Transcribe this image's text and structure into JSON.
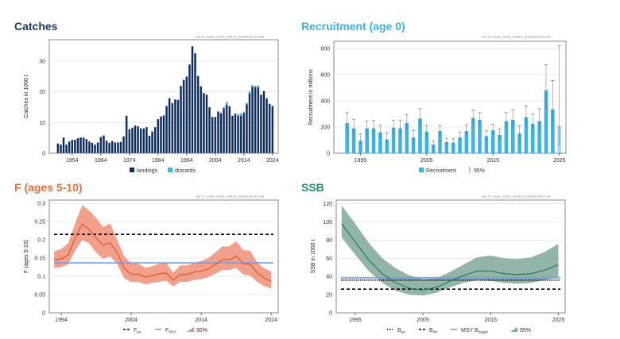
{
  "chart_data": [
    {
      "type": "bar",
      "title": "Catches",
      "title_color": "#1b3a6b",
      "watermark": "anf.27.3a46_2025_20913_2025515162139",
      "xlabel": "",
      "ylabel": "Catches in 1000 t",
      "xlim": [
        1946,
        2026
      ],
      "ylim": [
        0,
        37
      ],
      "yticks": [
        0,
        10,
        20,
        30
      ],
      "xticks": [
        1954,
        1964,
        1974,
        1984,
        1994,
        2004,
        2014,
        2024
      ],
      "grid": true,
      "stacked": true,
      "legend": "bottom",
      "years": [
        1949,
        1950,
        1951,
        1952,
        1953,
        1954,
        1955,
        1956,
        1957,
        1958,
        1959,
        1960,
        1961,
        1962,
        1963,
        1964,
        1965,
        1966,
        1967,
        1968,
        1969,
        1970,
        1971,
        1972,
        1973,
        1974,
        1975,
        1976,
        1977,
        1978,
        1979,
        1980,
        1981,
        1982,
        1983,
        1984,
        1985,
        1986,
        1987,
        1988,
        1989,
        1990,
        1991,
        1992,
        1993,
        1994,
        1995,
        1996,
        1997,
        1998,
        1999,
        2000,
        2001,
        2002,
        2003,
        2004,
        2005,
        2006,
        2007,
        2008,
        2009,
        2010,
        2011,
        2012,
        2013,
        2014,
        2015,
        2016,
        2017,
        2018,
        2019,
        2020,
        2021,
        2022,
        2023,
        2024
      ],
      "series": [
        {
          "name": "landings",
          "color": "#0d2a5c",
          "values": [
            3.2,
            2.8,
            5.1,
            2.8,
            3.8,
            4.4,
            4.4,
            4.9,
            5.1,
            5.1,
            4.6,
            3.8,
            3.4,
            2.8,
            3.5,
            5.3,
            5.8,
            4.1,
            3.4,
            4.0,
            3.5,
            3.5,
            3.7,
            5.5,
            12.2,
            7.8,
            8.3,
            9.0,
            8.8,
            8.1,
            8.1,
            8.5,
            5.7,
            7.1,
            8.5,
            11.1,
            12.0,
            12.3,
            15.4,
            17.9,
            16.3,
            17.5,
            17.4,
            21.9,
            23.9,
            25.0,
            28.9,
            34.9,
            32.6,
            25.2,
            21.8,
            19.6,
            19.1,
            15.0,
            11.8,
            11.8,
            13.6,
            13.1,
            14.7,
            15.8,
            15.3,
            12.2,
            12.9,
            12.2,
            12.2,
            13.1,
            16.0,
            19.5,
            21.6,
            21.6,
            21.5,
            19.0,
            20.3,
            17.8,
            16.1,
            15.3
          ]
        },
        {
          "name": "discards",
          "color": "#3bb3e8",
          "values": [
            0,
            0,
            0,
            0,
            0,
            0,
            0,
            0,
            0,
            0,
            0,
            0,
            0,
            0,
            0,
            0,
            0,
            0,
            0,
            0,
            0,
            0,
            0,
            0,
            0,
            0,
            0,
            0,
            0,
            0,
            0,
            0,
            0,
            0,
            0,
            0,
            0,
            0,
            0,
            0,
            0,
            0,
            0,
            0,
            0,
            0,
            0,
            0,
            0,
            0,
            0,
            0,
            0,
            0,
            0,
            0,
            0,
            0,
            0.3,
            0.9,
            0,
            0,
            0,
            0.6,
            0.8,
            0.4,
            0.4,
            0.6,
            0.6,
            0.3,
            0.5,
            0.2,
            0,
            0.2,
            0,
            0.2
          ]
        }
      ]
    },
    {
      "type": "bar",
      "title": "Recruitment (age 0)",
      "title_color": "#3bb3e8",
      "watermark": "anf.27.3a46_2025_20913_2025515162139",
      "xlabel": "",
      "ylabel": "Recruitment in millions",
      "xlim": [
        1991,
        2026
      ],
      "ylim": [
        0,
        855
      ],
      "yticks": [
        0,
        200,
        400,
        600,
        800
      ],
      "xticks": [
        1995,
        2005,
        2015,
        2025
      ],
      "grid": true,
      "legend": "bottom",
      "years": [
        1993,
        1994,
        1995,
        1996,
        1997,
        1998,
        1999,
        2000,
        2001,
        2002,
        2003,
        2004,
        2005,
        2006,
        2007,
        2008,
        2009,
        2010,
        2011,
        2012,
        2013,
        2014,
        2015,
        2016,
        2017,
        2018,
        2019,
        2020,
        2021,
        2022,
        2023,
        2024,
        2025
      ],
      "series": [
        {
          "name": "Recruitment",
          "color": "#3bb3e8",
          "values": [
            230,
            190,
            95,
            190,
            190,
            160,
            105,
            195,
            190,
            230,
            120,
            265,
            165,
            65,
            170,
            85,
            80,
            120,
            170,
            270,
            255,
            130,
            175,
            140,
            245,
            255,
            150,
            275,
            225,
            245,
            480,
            335,
            210
          ],
          "low": [
            170,
            130,
            60,
            140,
            140,
            110,
            70,
            140,
            140,
            180,
            80,
            210,
            115,
            45,
            130,
            60,
            60,
            95,
            135,
            215,
            210,
            100,
            140,
            110,
            195,
            200,
            115,
            210,
            170,
            180,
            340,
            205,
            55
          ],
          "high": [
            310,
            260,
            150,
            245,
            250,
            215,
            155,
            250,
            250,
            295,
            175,
            340,
            215,
            95,
            210,
            115,
            110,
            160,
            215,
            330,
            310,
            170,
            220,
            185,
            310,
            330,
            210,
            360,
            300,
            340,
            675,
            555,
            820
          ]
        }
      ],
      "interval_label": "95%"
    },
    {
      "type": "line",
      "title": "F (ages 5-10)",
      "title_color": "#e8703a",
      "watermark": "anf.27.3a46_2025_20913_2025515162139",
      "xlabel": "",
      "ylabel": "F (ages 5-10)",
      "xlim": [
        1992.3,
        2025
      ],
      "ylim": [
        0,
        0.309
      ],
      "yticks": [
        0,
        0.05,
        0.1,
        0.15,
        0.2,
        0.25,
        0.3
      ],
      "xticks": [
        1994,
        2004,
        2014,
        2024
      ],
      "grid": true,
      "legend": "bottom",
      "x": [
        1993,
        1994,
        1995,
        1996,
        1997,
        1998,
        1999,
        2000,
        2001,
        2002,
        2003,
        2004,
        2005,
        2006,
        2007,
        2008,
        2009,
        2010,
        2011,
        2012,
        2013,
        2014,
        2015,
        2016,
        2017,
        2018,
        2019,
        2020,
        2021,
        2022,
        2023,
        2024
      ],
      "series": [
        {
          "name": "F",
          "color": "#e0552e",
          "values": [
            0.145,
            0.148,
            0.158,
            0.205,
            0.243,
            0.228,
            0.205,
            0.185,
            0.192,
            0.165,
            0.122,
            0.106,
            0.106,
            0.098,
            0.102,
            0.107,
            0.109,
            0.089,
            0.105,
            0.105,
            0.112,
            0.114,
            0.12,
            0.132,
            0.145,
            0.145,
            0.155,
            0.134,
            0.133,
            0.11,
            0.095,
            0.087
          ],
          "low": [
            0.123,
            0.125,
            0.133,
            0.17,
            0.2,
            0.19,
            0.165,
            0.148,
            0.155,
            0.133,
            0.095,
            0.084,
            0.085,
            0.078,
            0.082,
            0.085,
            0.088,
            0.072,
            0.085,
            0.085,
            0.09,
            0.092,
            0.098,
            0.107,
            0.117,
            0.117,
            0.123,
            0.105,
            0.102,
            0.085,
            0.073,
            0.067
          ],
          "high": [
            0.168,
            0.175,
            0.19,
            0.245,
            0.295,
            0.28,
            0.26,
            0.235,
            0.245,
            0.2,
            0.155,
            0.135,
            0.135,
            0.123,
            0.128,
            0.135,
            0.137,
            0.11,
            0.13,
            0.13,
            0.138,
            0.142,
            0.15,
            0.165,
            0.182,
            0.182,
            0.196,
            0.172,
            0.17,
            0.138,
            0.122,
            0.113
          ]
        }
      ],
      "band_color": "#ef8f78",
      "reference_lines": [
        {
          "name": "Fpa",
          "label_main": "F",
          "label_sub": "pa",
          "value": 0.215,
          "color": "#000000",
          "style": "dashed"
        },
        {
          "name": "FMSY",
          "label_main": "F",
          "label_sub": "MSY",
          "value": 0.137,
          "color": "#6d9eeb",
          "style": "solid"
        }
      ],
      "interval_label": "95%"
    },
    {
      "type": "line",
      "title": "SSB",
      "title_color": "#2a8a75",
      "watermark": "anf.27.3a46_2025_20913_2025515162139",
      "xlabel": "",
      "ylabel": "SSB in 1000 t",
      "xlim": [
        1992.2,
        2026
      ],
      "ylim": [
        0,
        124
      ],
      "yticks": [
        0,
        20,
        40,
        60,
        80,
        100,
        120
      ],
      "xticks": [
        1995,
        2005,
        2015,
        2025
      ],
      "grid": true,
      "legend": "bottom",
      "x": [
        1993,
        1995,
        1997,
        1999,
        2001,
        2003,
        2005,
        2007,
        2009,
        2011,
        2013,
        2015,
        2017,
        2019,
        2021,
        2023,
        2025
      ],
      "series": [
        {
          "name": "SSB",
          "color": "#1f7a64",
          "values": [
            98,
            78,
            58,
            43,
            33,
            27,
            25,
            28,
            35,
            41,
            46,
            46,
            43,
            42,
            43,
            47,
            53
          ],
          "low": [
            83,
            64,
            46,
            33,
            24,
            20,
            19,
            22,
            28,
            33,
            36,
            35,
            33,
            32,
            33,
            36,
            39
          ],
          "high": [
            118,
            98,
            77,
            60,
            49,
            41,
            37,
            38,
            45,
            53,
            61,
            63,
            60,
            59,
            61,
            67,
            76
          ]
        }
      ],
      "band_color": "#7fa898",
      "reference_lines": [
        {
          "name": "Bpa",
          "label_main": "B",
          "label_sub": "pa",
          "value": 36,
          "color": "#000000",
          "style": "dotted"
        },
        {
          "name": "Blim",
          "label_main": "B",
          "label_sub": "lim",
          "value": 26,
          "color": "#000000",
          "style": "dashed"
        },
        {
          "name": "MSY Btrigger",
          "label_main": "MSY B",
          "label_sub": "trigger",
          "value": 38.5,
          "color": "#6d9eeb",
          "style": "solid"
        }
      ],
      "interval_label": "95%"
    }
  ]
}
